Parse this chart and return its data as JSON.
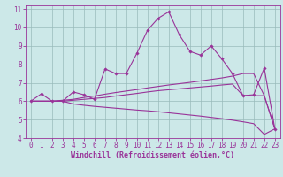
{
  "xlabel": "Windchill (Refroidissement éolien,°C)",
  "background_color": "#cce8e8",
  "line_color": "#993399",
  "grid_color": "#99bbbb",
  "xlim": [
    -0.5,
    23.5
  ],
  "ylim": [
    4,
    11.2
  ],
  "yticks": [
    4,
    5,
    6,
    7,
    8,
    9,
    10,
    11
  ],
  "xticks": [
    0,
    1,
    2,
    3,
    4,
    5,
    6,
    7,
    8,
    9,
    10,
    11,
    12,
    13,
    14,
    15,
    16,
    17,
    18,
    19,
    20,
    21,
    22,
    23
  ],
  "line1_x": [
    0,
    1,
    2,
    3,
    4,
    5,
    6,
    7,
    8,
    9,
    10,
    11,
    12,
    13,
    14,
    15,
    16,
    17,
    18,
    19,
    20,
    21,
    22,
    23
  ],
  "line1_y": [
    6.0,
    6.0,
    6.0,
    6.0,
    5.85,
    5.78,
    5.72,
    5.67,
    5.62,
    5.57,
    5.52,
    5.48,
    5.43,
    5.37,
    5.31,
    5.25,
    5.19,
    5.12,
    5.05,
    4.97,
    4.88,
    4.78,
    4.2,
    4.5
  ],
  "line2_x": [
    0,
    1,
    2,
    3,
    4,
    5,
    6,
    7,
    8,
    9,
    10,
    11,
    12,
    13,
    14,
    15,
    16,
    17,
    18,
    19,
    20,
    21,
    22,
    23
  ],
  "line2_y": [
    6.0,
    6.0,
    6.0,
    6.0,
    6.05,
    6.1,
    6.15,
    6.2,
    6.28,
    6.35,
    6.42,
    6.5,
    6.57,
    6.62,
    6.67,
    6.72,
    6.77,
    6.82,
    6.88,
    6.93,
    6.3,
    6.3,
    6.3,
    4.5
  ],
  "line3_x": [
    0,
    1,
    2,
    3,
    4,
    5,
    6,
    7,
    8,
    9,
    10,
    11,
    12,
    13,
    14,
    15,
    16,
    17,
    18,
    19,
    20,
    21,
    22,
    23
  ],
  "line3_y": [
    6.0,
    6.0,
    6.0,
    6.05,
    6.1,
    6.2,
    6.28,
    6.38,
    6.47,
    6.55,
    6.63,
    6.72,
    6.8,
    6.88,
    6.95,
    7.02,
    7.1,
    7.18,
    7.26,
    7.36,
    7.5,
    7.5,
    6.3,
    4.5
  ],
  "line4_x": [
    0,
    1,
    2,
    3,
    4,
    5,
    6,
    7,
    8,
    9,
    10,
    11,
    12,
    13,
    14,
    15,
    16,
    17,
    18,
    19,
    20,
    21,
    22,
    23
  ],
  "line4_y": [
    6.0,
    6.4,
    6.0,
    6.0,
    6.5,
    6.35,
    6.1,
    7.75,
    7.5,
    7.5,
    8.6,
    9.85,
    10.5,
    10.85,
    9.6,
    8.7,
    8.5,
    9.0,
    8.3,
    7.5,
    6.3,
    6.35,
    7.8,
    4.5
  ],
  "tick_labelsize": 5.5,
  "label_fontsize": 6.0
}
